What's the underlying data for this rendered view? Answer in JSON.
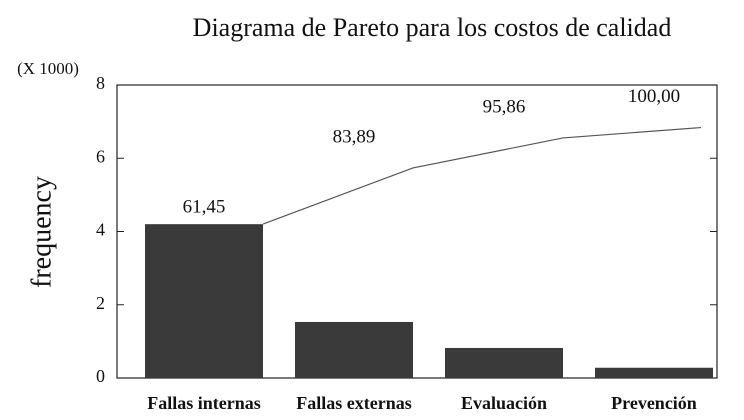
{
  "chart_data": {
    "type": "pareto",
    "title": "Diagrama de Pareto para los costos de calidad",
    "y_axis_label": "frequency",
    "y_axis_multiplier": "(X 1000)",
    "categories": [
      "Fallas internas",
      "Fallas externas",
      "Evaluación",
      "Prevención"
    ],
    "series": [
      {
        "name": "frequency",
        "type": "bar",
        "color": "#3a3a3a",
        "values": [
          4.2,
          1.53,
          0.82,
          0.28
        ]
      },
      {
        "name": "cumulative",
        "type": "line",
        "color": "#555555",
        "axis": "y2",
        "values": [
          61.45,
          83.89,
          95.86,
          100.0
        ],
        "value_labels": [
          "61,45",
          "83,89",
          "95,86",
          "100,00"
        ]
      }
    ],
    "ylim": [
      0,
      8
    ],
    "yticks": [
      0,
      2,
      4,
      6,
      8
    ],
    "y2lim": [
      0,
      117
    ]
  }
}
